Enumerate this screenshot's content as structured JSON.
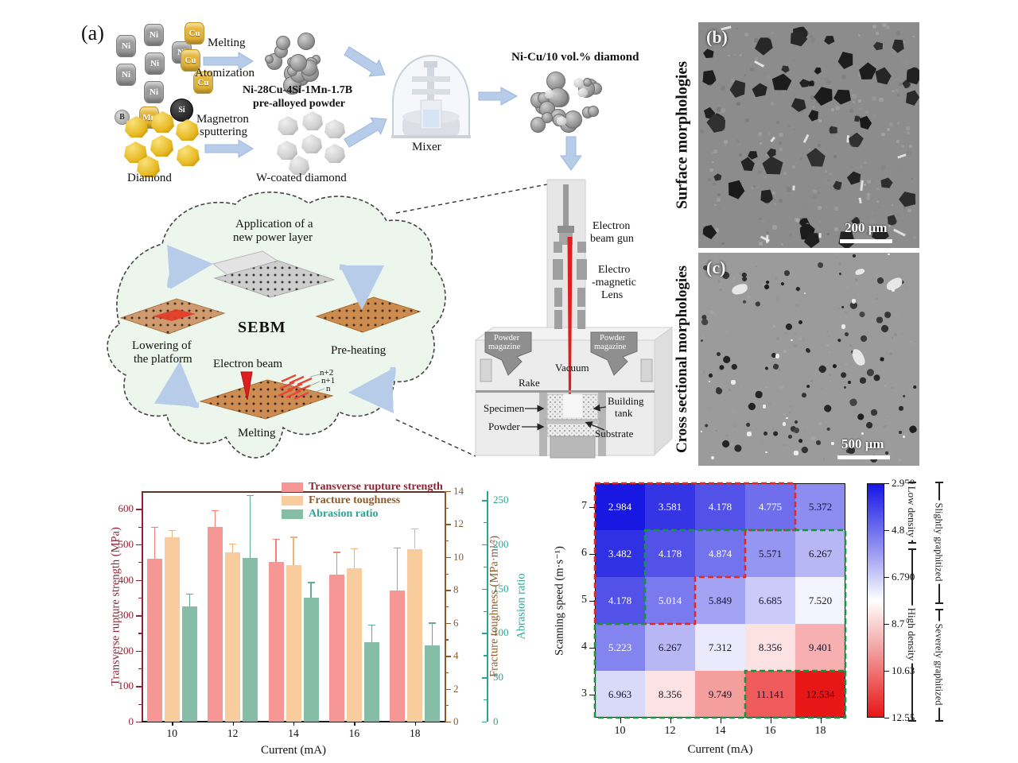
{
  "panel_a": {
    "label": "(a)",
    "atoms": [
      "Ni",
      "Ni",
      "Ni",
      "Ni",
      "Ni",
      "Ni",
      "Cu",
      "Cu",
      "Cu",
      "Mn",
      "B",
      "Si"
    ],
    "flow": {
      "melting": "Melting",
      "atomization": "Atomization",
      "prealloy_1": "Ni-28Cu-4Si-1Mn-1.7B",
      "prealloy_2": "pre-alloyed powder",
      "diamond": "Diamond",
      "magnetron_1": "Magnetron",
      "magnetron_2": "sputtering",
      "wcoated": "W-coated diamond",
      "mixer": "Mixer",
      "mixture": "Ni-Cu/10 vol.% diamond"
    },
    "sebm": {
      "title": "SEBM",
      "step_top_1": "Application of a",
      "step_top_2": "new power layer",
      "step_right": "Pre-heating",
      "step_left_1": "Lowering of",
      "step_left_2": "the platform",
      "step_bottom": "Melting",
      "electron_beam": "Electron beam",
      "layers": [
        "n+2",
        "n+1",
        "n"
      ]
    },
    "machine": {
      "gun_1": "Electron",
      "gun_2": "beam gun",
      "lens_1": "Electro",
      "lens_2": "-magnetic",
      "lens_3": "Lens",
      "magazine_1": "Powder",
      "magazine_2": "magazine",
      "vacuum": "Vacuum",
      "rake": "Rake",
      "specimen": "Specimen",
      "building_1": "Building",
      "building_2": "tank",
      "powder": "Powder",
      "substrate": "Substrate"
    }
  },
  "panel_b": {
    "label": "(b)",
    "side_label": "Surface morphologies",
    "scale_bar": "200 μm"
  },
  "panel_c": {
    "label": "(c)",
    "side_label": "Cross sectional morphologies",
    "scale_bar": "500 μm"
  },
  "chart_data": [
    {
      "type": "bar",
      "categories": [
        10,
        12,
        14,
        16,
        18
      ],
      "xlabel": "Current (mA)",
      "axes": {
        "left": {
          "label": "Transverse rupture strength (MPa)",
          "ticks": [
            0,
            100,
            200,
            300,
            400,
            500,
            600
          ],
          "max": 650,
          "color": "#8e2133"
        },
        "right1": {
          "label": "Fracture toughness (MPa·m¹⁄²)",
          "ticks": [
            0,
            2,
            4,
            6,
            8,
            10,
            12,
            14
          ],
          "max": 14,
          "color": "#8a5a2b"
        },
        "right2": {
          "label": "Abrasion ratio",
          "ticks": [
            0,
            50,
            100,
            150,
            200,
            250
          ],
          "max": 260,
          "color": "#2aa493"
        }
      },
      "series": [
        {
          "name": "Transverse rupture strength",
          "axis": "left",
          "color": "#f79795",
          "errcolor": "#ee8078",
          "values": [
            460,
            550,
            450,
            415,
            370
          ],
          "errors": [
            88,
            45,
            65,
            62,
            120
          ]
        },
        {
          "name": "Fracture toughness",
          "axis": "right1",
          "color": "#f9cc9d",
          "errcolor": "#f0b275",
          "values": [
            11.2,
            10.3,
            9.5,
            9.3,
            10.5
          ],
          "errors": [
            0.4,
            0.5,
            1.7,
            1.2,
            1.2
          ]
        },
        {
          "name": "Abrasion ratio",
          "axis": "right2",
          "color": "#85bda6",
          "errcolor": "#5fae94",
          "values": [
            130,
            185,
            140,
            90,
            86
          ],
          "errors": [
            14,
            70,
            17,
            19,
            25
          ]
        }
      ],
      "legend_position": "top-right",
      "grid": false
    },
    {
      "type": "heatmap",
      "xlabel": "Current (mA)",
      "ylabel": "Scanning speed (m·s⁻¹)",
      "x": [
        10,
        12,
        14,
        16,
        18
      ],
      "y": [
        7,
        6,
        5,
        4,
        3
      ],
      "values": [
        [
          2.984,
          3.581,
          4.178,
          4.775,
          5.372
        ],
        [
          3.482,
          4.178,
          4.874,
          5.571,
          6.267
        ],
        [
          4.178,
          5.014,
          5.849,
          6.685,
          7.52
        ],
        [
          5.223,
          6.267,
          7.312,
          8.356,
          9.401
        ],
        [
          6.963,
          8.356,
          9.749,
          11.141,
          12.534
        ]
      ],
      "colorbar": {
        "ticks": [
          "2.950",
          "4.870",
          "6.790",
          "8.710",
          "10.63",
          "12.55"
        ],
        "min": 2.95,
        "max": 12.55
      },
      "annotations": [
        "Low density",
        "High density",
        "Slightly graphitized",
        "Severely graphitized"
      ],
      "region_colors": {
        "red_dashed": "#e8251f",
        "green_dashed": "#17923f"
      }
    }
  ]
}
